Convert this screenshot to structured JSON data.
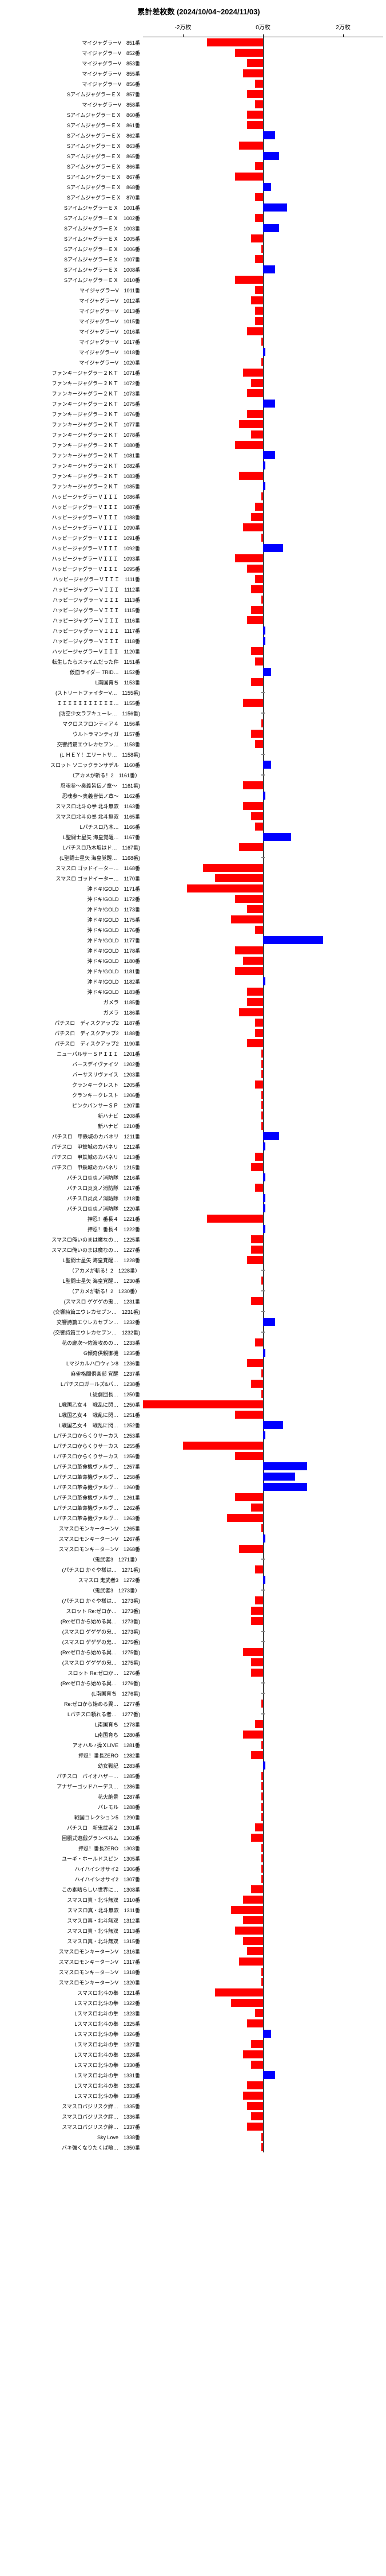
{
  "title": "累計差枚数 (2024/10/04~2024/11/03)",
  "axis": {
    "min": -30000,
    "max": 30000,
    "ticks": [
      {
        "pos": -20000,
        "label": "-2万枚"
      },
      {
        "pos": 0,
        "label": "0万枚"
      },
      {
        "pos": 20000,
        "label": "2万枚"
      }
    ]
  },
  "colors": {
    "negative": "#ff0000",
    "positive": "#0000ff",
    "dash": "#888888",
    "background": "#ffffff"
  },
  "rows": [
    {
      "label": "マイジャグラーV　851番",
      "value": -14000
    },
    {
      "label": "マイジャグラーV　852番",
      "value": -7000
    },
    {
      "label": "マイジャグラーV　853番",
      "value": -4000
    },
    {
      "label": "マイジャグラーV　855番",
      "value": -5000
    },
    {
      "label": "マイジャグラーV　856番",
      "value": -2000
    },
    {
      "label": "SアイムジャグラーＥＸ　857番",
      "value": -4000
    },
    {
      "label": "マイジャグラーV　858番",
      "value": -2000
    },
    {
      "label": "SアイムジャグラーＥＸ　860番",
      "value": -4000
    },
    {
      "label": "SアイムジャグラーＥＸ　861番",
      "value": -4000
    },
    {
      "label": "SアイムジャグラーＥＸ　862番",
      "value": 3000
    },
    {
      "label": "SアイムジャグラーＥＸ　863番",
      "value": -6000
    },
    {
      "label": "SアイムジャグラーＥＸ　865番",
      "value": 4000
    },
    {
      "label": "SアイムジャグラーＥＸ　866番",
      "value": -2000
    },
    {
      "label": "SアイムジャグラーＥＸ　867番",
      "value": -7000
    },
    {
      "label": "SアイムジャグラーＥＸ　868番",
      "value": 2000
    },
    {
      "label": "SアイムジャグラーＥＸ　870番",
      "value": -2000
    },
    {
      "label": "SアイムジャグラーＥＸ　1001番",
      "value": 6000
    },
    {
      "label": "SアイムジャグラーＥＸ　1002番",
      "value": -2000
    },
    {
      "label": "SアイムジャグラーＥＸ　1003番",
      "value": 4000
    },
    {
      "label": "SアイムジャグラーＥＸ　1005番",
      "value": -3000
    },
    {
      "label": "SアイムジャグラーＥＸ　1006番",
      "value": -500
    },
    {
      "label": "SアイムジャグラーＥＸ　1007番",
      "value": -2000
    },
    {
      "label": "SアイムジャグラーＥＸ　1008番",
      "value": 3000
    },
    {
      "label": "SアイムジャグラーＥＸ　1010番",
      "value": -7000
    },
    {
      "label": "マイジャグラーV　1011番",
      "value": -2000
    },
    {
      "label": "マイジャグラーV　1012番",
      "value": -3000
    },
    {
      "label": "マイジャグラーV　1013番",
      "value": -2000
    },
    {
      "label": "マイジャグラーV　1015番",
      "value": -2000
    },
    {
      "label": "マイジャグラーV　1016番",
      "value": -4000
    },
    {
      "label": "マイジャグラーV　1017番",
      "value": -500
    },
    {
      "label": "マイジャグラーV　1018番",
      "value": 500
    },
    {
      "label": "マイジャグラーV　1020番",
      "value": -500
    },
    {
      "label": "ファンキージャグラー２ＫＴ　1071番",
      "value": -5000
    },
    {
      "label": "ファンキージャグラー２ＫＴ　1072番",
      "value": -3000
    },
    {
      "label": "ファンキージャグラー２ＫＴ　1073番",
      "value": -4000
    },
    {
      "label": "ファンキージャグラー２ＫＴ　1075番",
      "value": 3000
    },
    {
      "label": "ファンキージャグラー２ＫＴ　1076番",
      "value": -4000
    },
    {
      "label": "ファンキージャグラー２ＫＴ　1077番",
      "value": -6000
    },
    {
      "label": "ファンキージャグラー２ＫＴ　1078番",
      "value": -3000
    },
    {
      "label": "ファンキージャグラー２ＫＴ　1080番",
      "value": -7000
    },
    {
      "label": "ファンキージャグラー２ＫＴ　1081番",
      "value": 3000
    },
    {
      "label": "ファンキージャグラー２ＫＴ　1082番",
      "value": 500
    },
    {
      "label": "ファンキージャグラー２ＫＴ　1083番",
      "value": -6000
    },
    {
      "label": "ファンキージャグラー２ＫＴ　1085番",
      "value": 500
    },
    {
      "label": "ハッピージャグラーＶＩＩＩ　1086番",
      "value": -500
    },
    {
      "label": "ハッピージャグラーＶＩＩＩ　1087番",
      "value": -2000
    },
    {
      "label": "ハッピージャグラーＶＩＩＩ　1088番",
      "value": -3000
    },
    {
      "label": "ハッピージャグラーＶＩＩＩ　1090番",
      "value": -5000
    },
    {
      "label": "ハッピージャグラーＶＩＩＩ　1091番",
      "value": -500
    },
    {
      "label": "ハッピージャグラーＶＩＩＩ　1092番",
      "value": 5000
    },
    {
      "label": "ハッピージャグラーＶＩＩＩ　1093番",
      "value": -7000
    },
    {
      "label": "ハッピージャグラーＶＩＩＩ　1095番",
      "value": -4000
    },
    {
      "label": "ハッピージャグラーＶＩＩＩ　1111番",
      "value": -2000
    },
    {
      "label": "ハッピージャグラーＶＩＩＩ　1112番",
      "value": -3000
    },
    {
      "label": "ハッピージャグラーＶＩＩＩ　1113番",
      "value": -500
    },
    {
      "label": "ハッピージャグラーＶＩＩＩ　1115番",
      "value": -3000
    },
    {
      "label": "ハッピージャグラーＶＩＩＩ　1116番",
      "value": -4000
    },
    {
      "label": "ハッピージャグラーＶＩＩＩ　1117番",
      "value": 500
    },
    {
      "label": "ハッピージャグラーＶＩＩＩ　1118番",
      "value": 500
    },
    {
      "label": "ハッピージャグラーＶＩＩＩ　1120番",
      "value": -3000
    },
    {
      "label": "転生したらスライムだった件　1151番",
      "value": -2000
    },
    {
      "label": "仮面ライダー 7RID…　1152番",
      "value": 2000
    },
    {
      "label": "L南国育ち　1153番",
      "value": -3000
    },
    {
      "label": "(ストリートファイターV…　1155番)",
      "value": null
    },
    {
      "label": "ＩＩＩＩＩＩＩＩＩＩＩ…　1155番",
      "value": -5000
    },
    {
      "label": "(防空少女ラブキューレ…　1156番)",
      "value": null
    },
    {
      "label": "マクロスフロンティア４　1156番",
      "value": -500
    },
    {
      "label": "ウルトラマンティガ　1157番",
      "value": -3000
    },
    {
      "label": "交響詩篇エウレカセブン…　1158番",
      "value": -2000
    },
    {
      "label": "(L ＨＥＹ！エリートサ…　1158番)",
      "value": null
    },
    {
      "label": "スロット ソニックランサデル　1160番",
      "value": 2000
    },
    {
      "label": "（アカメが斬る！2　1161番）",
      "value": null
    },
    {
      "label": "忍魂参～奥義皆伝ノ章～　1161番)",
      "value": -5000
    },
    {
      "label": "忍魂参～奥義皆伝ノ章～　1162番",
      "value": 500
    },
    {
      "label": "スマスロ北斗の拳 北斗無双　1163番",
      "value": -5000
    },
    {
      "label": "スマスロ北斗の拳 北斗無双　1165番",
      "value": -3000
    },
    {
      "label": "Lパチスロ乃木…　1166番",
      "value": -2000
    },
    {
      "label": "L聖闘士星矢 海皇覚醒…　1167番",
      "value": 7000
    },
    {
      "label": "Lパチスロ乃木坂はド…　1167番)",
      "value": -6000
    },
    {
      "label": "(L聖闘士星矢 海皇覚醒…　1168番)",
      "value": null
    },
    {
      "label": "スマスロ ゴッドイーター…　1168番",
      "value": -15000
    },
    {
      "label": "スマスロ ゴッドイーター…　1170番",
      "value": -12000
    },
    {
      "label": "沖ドキ!GOLD　1171番",
      "value": -19000
    },
    {
      "label": "沖ドキ!GOLD　1172番",
      "value": -7000
    },
    {
      "label": "沖ドキ!GOLD　1173番",
      "value": -4000
    },
    {
      "label": "沖ドキ!GOLD　1175番",
      "value": -8000
    },
    {
      "label": "沖ドキ!GOLD　1176番",
      "value": -2000
    },
    {
      "label": "沖ドキ!GOLD　1177番",
      "value": 15000
    },
    {
      "label": "沖ドキ!GOLD　1178番",
      "value": -7000
    },
    {
      "label": "沖ドキ!GOLD　1180番",
      "value": -5000
    },
    {
      "label": "沖ドキ!GOLD　1181番",
      "value": -7000
    },
    {
      "label": "沖ドキ!GOLD　1182番",
      "value": 500
    },
    {
      "label": "沖ドキ!GOLD　1183番",
      "value": -4000
    },
    {
      "label": "ガメラ　1185番",
      "value": -4000
    },
    {
      "label": "ガメラ　1186番",
      "value": -6000
    },
    {
      "label": "パチスロ　ディスクアップ2　1187番",
      "value": -2000
    },
    {
      "label": "パチスロ　ディスクアップ2　1188番",
      "value": -2000
    },
    {
      "label": "パチスロ　ディスクアップ2　1190番",
      "value": -4000
    },
    {
      "label": "ニューパルサーＳＰＩＩＩ　1201番",
      "value": -500
    },
    {
      "label": "バースデイヴァイツ　1202番",
      "value": -500
    },
    {
      "label": "バーサスリヴァイス　1203番",
      "value": -500
    },
    {
      "label": "クランキークレスト　1205番",
      "value": -2000
    },
    {
      "label": "クランキークレスト　1206番",
      "value": -500
    },
    {
      "label": "ピンクパンサーＳＰ　1207番",
      "value": -500
    },
    {
      "label": "新ハナビ　1208番",
      "value": -500
    },
    {
      "label": "新ハナビ　1210番",
      "value": -500
    },
    {
      "label": "パチスロ　甲鉄城のカバネリ　1211番",
      "value": 4000
    },
    {
      "label": "パチスロ　甲鉄城のカバネリ　1212番",
      "value": 500
    },
    {
      "label": "パチスロ　甲鉄城のカバネリ　1213番",
      "value": -2000
    },
    {
      "label": "パチスロ　甲鉄城のカバネリ　1215番",
      "value": -3000
    },
    {
      "label": "パチスロ炎炎ノ消防隊　1216番",
      "value": 500
    },
    {
      "label": "パチスロ炎炎ノ消防隊　1217番",
      "value": -2000
    },
    {
      "label": "パチスロ炎炎ノ消防隊　1218番",
      "value": 500
    },
    {
      "label": "パチスロ炎炎ノ消防隊　1220番",
      "value": 500
    },
    {
      "label": "押忍！番長４　1221番",
      "value": -14000
    },
    {
      "label": "押忍！番長４　1222番",
      "value": 500
    },
    {
      "label": "スマスロ俺いのまは魔なの…　1225番",
      "value": -3000
    },
    {
      "label": "スマスロ俺いのまは魔なの…　1227番",
      "value": -3000
    },
    {
      "label": "L聖闘士星矢 海皇覚醒…　1228番",
      "value": -4000
    },
    {
      "label": "（アカメが斬る！2　1228番）",
      "value": null
    },
    {
      "label": "L聖闘士星矢 海皇覚醒…　1230番",
      "value": -500
    },
    {
      "label": "（アカメが斬る！2　1230番）",
      "value": null
    },
    {
      "label": "(スマスロ ゲゲゲの鬼…　1231番",
      "value": -3000
    },
    {
      "label": "(交響詩篇エウレカセブン…　1231番)",
      "value": null
    },
    {
      "label": "交響詩篇エウレカセブン…　1232番",
      "value": 3000
    },
    {
      "label": "(交響詩篇エウレカセブン…　1232番)",
      "value": null
    },
    {
      "label": "花の慶次～佐渡攻めの…　1233番",
      "value": -2000
    },
    {
      "label": "G傾奇供親御機　1235番",
      "value": 500
    },
    {
      "label": "Lマジカルハロウィン8　1236番",
      "value": -4000
    },
    {
      "label": "麻雀格闘倶楽部 覚醒　1237番",
      "value": -500
    },
    {
      "label": "Lパチスロガールズ&パ…　1238番",
      "value": -3000
    },
    {
      "label": "L従劇団長…　1250番",
      "value": -500
    },
    {
      "label": "L戦国乙女４　戦乱に閃…　1250番",
      "value": -30000
    },
    {
      "label": "L戦国乙女４　戦乱に閃…　1251番",
      "value": -7000
    },
    {
      "label": "L戦国乙女４　戦乱に閃…　1252番",
      "value": 5000
    },
    {
      "label": "Lパチスロからくりサーカス　1253番",
      "value": 500
    },
    {
      "label": "Lパチスロからくりサーカス　1255番",
      "value": -20000
    },
    {
      "label": "Lパチスロからくりサーカス　1256番",
      "value": -7000
    },
    {
      "label": "Lパチスロ革命機ヴァルヴ…　1257番",
      "value": 11000
    },
    {
      "label": "Lパチスロ革命機ヴァルヴ…　1258番",
      "value": 8000
    },
    {
      "label": "Lパチスロ革命機ヴァルヴ…　1260番",
      "value": 11000
    },
    {
      "label": "Lパチスロ革命機ヴァルヴ…　1261番",
      "value": -7000
    },
    {
      "label": "Lパチスロ革命機ヴァルヴ…　1262番",
      "value": -3000
    },
    {
      "label": "Lパチスロ革命機ヴァルヴ…　1263番",
      "value": -9000
    },
    {
      "label": "スマスロモンキーターンV　1265番",
      "value": -500
    },
    {
      "label": "スマスロモンキーターンV　1267番",
      "value": 500
    },
    {
      "label": "スマスロモンキーターンV　1268番",
      "value": -6000
    },
    {
      "label": "（鬼武者3　1271番）",
      "value": null
    },
    {
      "label": "(パチスロ かぐや様は…　1271番)",
      "value": -2000
    },
    {
      "label": "スマスロ 鬼武者3　1272番",
      "value": 500
    },
    {
      "label": "（鬼武者3　1273番）",
      "value": null
    },
    {
      "label": "(パチスロ かぐや様は…　1273番)",
      "value": -2000
    },
    {
      "label": "スロット Re:ゼロか…　1273番)",
      "value": -3000
    },
    {
      "label": "(Re:ゼロから始める異…　1273番)",
      "value": -3000
    },
    {
      "label": "(スマスロ ゲゲゲの鬼…　1273番)",
      "value": null
    },
    {
      "label": "(スマスロ ゲゲゲの鬼…　1275番)",
      "value": null
    },
    {
      "label": "(Re:ゼロから始める異…　1275番)",
      "value": -5000
    },
    {
      "label": "(スマスロ ゲゲゲの鬼…　1275番)",
      "value": -3000
    },
    {
      "label": "スロット Re:ゼロか…　1276番",
      "value": -3000
    },
    {
      "label": "(Re:ゼロから始める異…　1276番)",
      "value": null
    },
    {
      "label": "(L南国育ち　1276番)",
      "value": null
    },
    {
      "label": "Re:ゼロから始める異…　1277番",
      "value": -500
    },
    {
      "label": "Lパチスロ頼れる者…　1277番)",
      "value": null
    },
    {
      "label": "L南国育ち　1278番",
      "value": -2000
    },
    {
      "label": "L南国育ち　1280番",
      "value": -5000
    },
    {
      "label": "アオハル♂操ＸLIVE　1281番",
      "value": -500
    },
    {
      "label": "押忍！番長ZERO　1282番",
      "value": -3000
    },
    {
      "label": "幼女戦記　1283番",
      "value": 500
    },
    {
      "label": "パチスロ　バイオハザー…　1285番",
      "value": -500
    },
    {
      "label": "アナザーゴッドハーデス…　1286番",
      "value": -500
    },
    {
      "label": "花火絶景　1287番",
      "value": -500
    },
    {
      "label": "パレモル　1288番",
      "value": -500
    },
    {
      "label": "戦国コレクション5　1290番",
      "value": -500
    },
    {
      "label": "パチスロ　新鬼武者２　1301番",
      "value": -2000
    },
    {
      "label": "回胴式遊戯グランベルム　1302番",
      "value": -3000
    },
    {
      "label": "押忍！番長ZERO　1303番",
      "value": -500
    },
    {
      "label": "ユーギ・ホールドスピン　1305番",
      "value": -500
    },
    {
      "label": "ハイハイシオサイ2　1306番",
      "value": -500
    },
    {
      "label": "ハイハイシオサイ2　1307番",
      "value": -500
    },
    {
      "label": "この素晴らしい世界に…　1308番",
      "value": -3000
    },
    {
      "label": "スマスロ真・北斗無双　1310番",
      "value": -5000
    },
    {
      "label": "スマスロ真・北斗無双　1311番",
      "value": -8000
    },
    {
      "label": "スマスロ真・北斗無双　1312番",
      "value": -5000
    },
    {
      "label": "スマスロ真・北斗無双　1313番",
      "value": -7000
    },
    {
      "label": "スマスロ真・北斗無双　1315番",
      "value": -5000
    },
    {
      "label": "スマスロモンキーターンV　1316番",
      "value": -4000
    },
    {
      "label": "スマスロモンキーターンV　1317番",
      "value": -6000
    },
    {
      "label": "スマスロモンキーターンV　1318番",
      "value": -500
    },
    {
      "label": "スマスロモンキーターンV　1320番",
      "value": -500
    },
    {
      "label": "スマスロ北斗の拳　1321番",
      "value": -12000
    },
    {
      "label": "Lスマスロ北斗の拳　1322番",
      "value": -8000
    },
    {
      "label": "Lスマスロ北斗の拳　1323番",
      "value": -2000
    },
    {
      "label": "Lスマスロ北斗の拳　1325番",
      "value": -4000
    },
    {
      "label": "Lスマスロ北斗の拳　1326番",
      "value": 2000
    },
    {
      "label": "Lスマスロ北斗の拳　1327番",
      "value": -3000
    },
    {
      "label": "Lスマスロ北斗の拳　1328番",
      "value": -5000
    },
    {
      "label": "Lスマスロ北斗の拳　1330番",
      "value": -3000
    },
    {
      "label": "Lスマスロ北斗の拳　1331番",
      "value": 3000
    },
    {
      "label": "Lスマスロ北斗の拳　1332番",
      "value": -4000
    },
    {
      "label": "Lスマスロ北斗の拳　1333番",
      "value": -5000
    },
    {
      "label": "スマスロバジリスク絆…　1335番",
      "value": -4000
    },
    {
      "label": "スマスロバジリスク絆…　1336番",
      "value": -3000
    },
    {
      "label": "スマスロバジリスク絆…　1337番",
      "value": -4000
    },
    {
      "label": "Sky Love　1338番",
      "value": -500
    },
    {
      "label": "バキ強くなりたくば喰…　1350番",
      "value": -500
    }
  ]
}
